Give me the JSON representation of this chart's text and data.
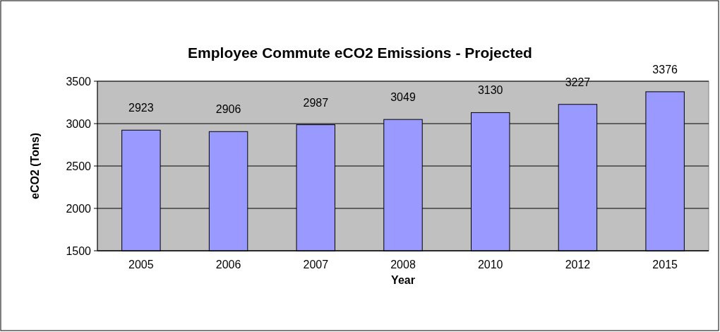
{
  "chart_data": {
    "type": "bar",
    "title": "Employee Commute eCO2 Emissions - Projected",
    "xlabel": "Year",
    "ylabel": "eCO2 (Tons)",
    "categories": [
      "2005",
      "2006",
      "2007",
      "2008",
      "2010",
      "2012",
      "2015"
    ],
    "values": [
      2923,
      2906,
      2987,
      3049,
      3130,
      3227,
      3376
    ],
    "color": "#9999ff",
    "ylim": [
      1500,
      3500
    ],
    "yticks": [
      1500,
      2000,
      2500,
      3000,
      3500
    ],
    "grid": "y",
    "data_labels": true
  }
}
